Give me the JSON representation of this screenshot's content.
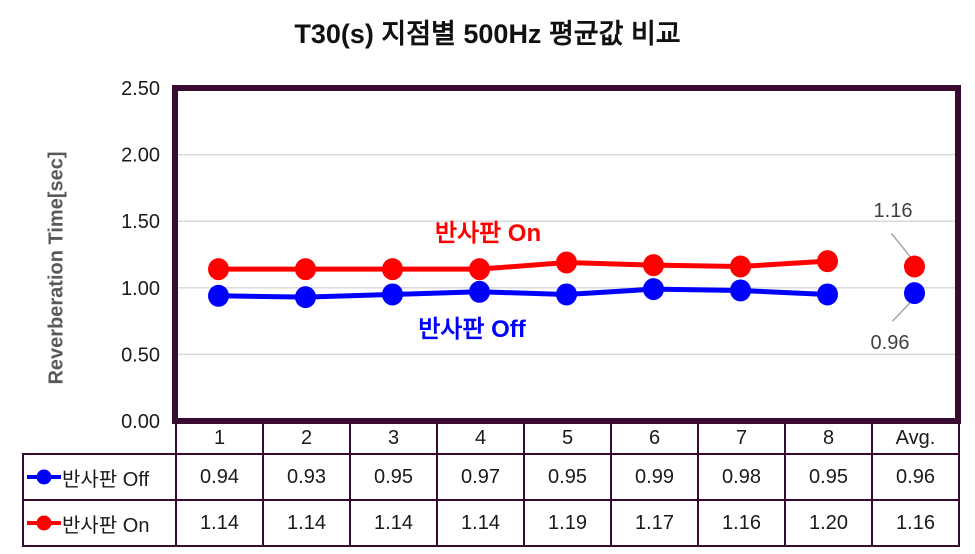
{
  "title": "T30(s) 지점별 500Hz 평균값 비교",
  "chart_data": {
    "type": "line",
    "title": "T30(s) 지점별 500Hz 평균값 비교",
    "xlabel": "",
    "ylabel": "Reverberation Time[sec]",
    "ylim": [
      0,
      2.5
    ],
    "ytick_step": 0.5,
    "yticks": [
      "2.50",
      "2.00",
      "1.50",
      "1.00",
      "0.50",
      "0.00"
    ],
    "grid": true,
    "legend_position": "table-left",
    "categories": [
      "1",
      "2",
      "3",
      "4",
      "5",
      "6",
      "7",
      "8",
      "Avg."
    ],
    "series": [
      {
        "name": "반사판 Off",
        "color": "#0000FF",
        "values": [
          "0.94",
          "0.93",
          "0.95",
          "0.97",
          "0.95",
          "0.99",
          "0.98",
          "0.95",
          "0.96"
        ]
      },
      {
        "name": "반사판 On",
        "color": "#FF0000",
        "values": [
          "1.14",
          "1.14",
          "1.14",
          "1.14",
          "1.19",
          "1.17",
          "1.16",
          "1.20",
          "1.16"
        ]
      }
    ],
    "annotations": [
      {
        "series": "반사판 On",
        "point": "Avg.",
        "text": "1.16"
      },
      {
        "series": "반사판 Off",
        "point": "Avg.",
        "text": "0.96"
      }
    ],
    "notes": "points 1-8 connected by line; Avg. point drawn separately with gray leader line to data label",
    "frame_color": "#3A0B30",
    "gridline_color": "#D9D9D9",
    "leader_color": "#A6A6A6",
    "annotation_text_color": "#404040"
  }
}
